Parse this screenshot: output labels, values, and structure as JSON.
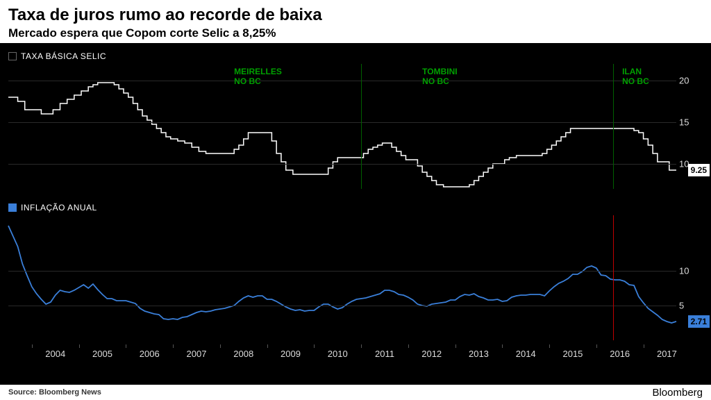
{
  "header": {
    "title": "Taxa de juros rumo ao recorde de baixa",
    "subtitle": "Mercado espera que Copom corte Selic a 8,25%"
  },
  "xaxis": {
    "start_year": 2003.5,
    "end_year": 2017.7,
    "ticks": [
      2004,
      2005,
      2006,
      2007,
      2008,
      2009,
      2010,
      2011,
      2012,
      2013,
      2014,
      2015,
      2016,
      2017
    ]
  },
  "top_chart": {
    "legend_label": "TAXA BÁSICA SELIC",
    "legend_swatch_border": "#666666",
    "legend_swatch_fill": "#000000",
    "line_color": "#ffffff",
    "line_width": 1.5,
    "ylim": [
      7,
      22
    ],
    "yticks": [
      10,
      15,
      20
    ],
    "grid_color": "#2a2a2a",
    "end_value_label": "9.25",
    "end_label_bg": "#ffffff",
    "annotations": [
      {
        "x": 2008.3,
        "text": "MEIRELLES\nNO BC",
        "vline_x": 2011.0
      },
      {
        "x": 2012.3,
        "text": "TOMBINI\nNO BC",
        "vline_x": 2016.35
      },
      {
        "x": 2016.55,
        "text": "ILAN\nNO BC",
        "vline_x": null
      }
    ],
    "red_vline_x": 2016.35,
    "data": [
      [
        2003.5,
        18.0
      ],
      [
        2003.6,
        18.0
      ],
      [
        2003.7,
        17.5
      ],
      [
        2003.8,
        17.5
      ],
      [
        2003.85,
        16.5
      ],
      [
        2003.95,
        16.5
      ],
      [
        2004.05,
        16.5
      ],
      [
        2004.2,
        16.0
      ],
      [
        2004.3,
        16.0
      ],
      [
        2004.4,
        16.0
      ],
      [
        2004.45,
        16.5
      ],
      [
        2004.55,
        16.5
      ],
      [
        2004.6,
        17.25
      ],
      [
        2004.7,
        17.25
      ],
      [
        2004.75,
        17.75
      ],
      [
        2004.85,
        17.75
      ],
      [
        2004.9,
        18.25
      ],
      [
        2005.0,
        18.25
      ],
      [
        2005.05,
        18.75
      ],
      [
        2005.15,
        18.75
      ],
      [
        2005.2,
        19.25
      ],
      [
        2005.3,
        19.5
      ],
      [
        2005.4,
        19.75
      ],
      [
        2005.5,
        19.75
      ],
      [
        2005.6,
        19.75
      ],
      [
        2005.7,
        19.75
      ],
      [
        2005.75,
        19.5
      ],
      [
        2005.85,
        19.0
      ],
      [
        2005.95,
        18.5
      ],
      [
        2006.05,
        18.0
      ],
      [
        2006.15,
        17.25
      ],
      [
        2006.25,
        16.5
      ],
      [
        2006.35,
        15.75
      ],
      [
        2006.45,
        15.25
      ],
      [
        2006.55,
        14.75
      ],
      [
        2006.65,
        14.25
      ],
      [
        2006.75,
        13.75
      ],
      [
        2006.85,
        13.25
      ],
      [
        2006.95,
        13.0
      ],
      [
        2007.1,
        12.75
      ],
      [
        2007.25,
        12.5
      ],
      [
        2007.4,
        12.0
      ],
      [
        2007.55,
        11.5
      ],
      [
        2007.7,
        11.25
      ],
      [
        2007.85,
        11.25
      ],
      [
        2008.0,
        11.25
      ],
      [
        2008.15,
        11.25
      ],
      [
        2008.3,
        11.75
      ],
      [
        2008.4,
        12.25
      ],
      [
        2008.5,
        13.0
      ],
      [
        2008.6,
        13.75
      ],
      [
        2008.7,
        13.75
      ],
      [
        2008.85,
        13.75
      ],
      [
        2009.0,
        13.75
      ],
      [
        2009.1,
        12.75
      ],
      [
        2009.2,
        11.25
      ],
      [
        2009.3,
        10.25
      ],
      [
        2009.4,
        9.25
      ],
      [
        2009.55,
        8.75
      ],
      [
        2009.7,
        8.75
      ],
      [
        2009.85,
        8.75
      ],
      [
        2010.0,
        8.75
      ],
      [
        2010.15,
        8.75
      ],
      [
        2010.3,
        9.5
      ],
      [
        2010.4,
        10.25
      ],
      [
        2010.5,
        10.75
      ],
      [
        2010.65,
        10.75
      ],
      [
        2010.8,
        10.75
      ],
      [
        2010.95,
        10.75
      ],
      [
        2011.05,
        11.25
      ],
      [
        2011.15,
        11.75
      ],
      [
        2011.25,
        12.0
      ],
      [
        2011.35,
        12.25
      ],
      [
        2011.45,
        12.5
      ],
      [
        2011.55,
        12.5
      ],
      [
        2011.65,
        12.0
      ],
      [
        2011.75,
        11.5
      ],
      [
        2011.85,
        11.0
      ],
      [
        2011.95,
        10.5
      ],
      [
        2012.1,
        10.5
      ],
      [
        2012.2,
        9.75
      ],
      [
        2012.3,
        9.0
      ],
      [
        2012.4,
        8.5
      ],
      [
        2012.5,
        8.0
      ],
      [
        2012.6,
        7.5
      ],
      [
        2012.75,
        7.25
      ],
      [
        2012.9,
        7.25
      ],
      [
        2013.05,
        7.25
      ],
      [
        2013.2,
        7.25
      ],
      [
        2013.3,
        7.5
      ],
      [
        2013.4,
        8.0
      ],
      [
        2013.5,
        8.5
      ],
      [
        2013.6,
        9.0
      ],
      [
        2013.7,
        9.5
      ],
      [
        2013.8,
        10.0
      ],
      [
        2013.95,
        10.0
      ],
      [
        2014.05,
        10.5
      ],
      [
        2014.15,
        10.75
      ],
      [
        2014.3,
        11.0
      ],
      [
        2014.5,
        11.0
      ],
      [
        2014.7,
        11.0
      ],
      [
        2014.85,
        11.25
      ],
      [
        2014.95,
        11.75
      ],
      [
        2015.05,
        12.25
      ],
      [
        2015.15,
        12.75
      ],
      [
        2015.25,
        13.25
      ],
      [
        2015.35,
        13.75
      ],
      [
        2015.45,
        14.25
      ],
      [
        2015.6,
        14.25
      ],
      [
        2015.75,
        14.25
      ],
      [
        2015.9,
        14.25
      ],
      [
        2016.1,
        14.25
      ],
      [
        2016.3,
        14.25
      ],
      [
        2016.5,
        14.25
      ],
      [
        2016.7,
        14.25
      ],
      [
        2016.8,
        14.0
      ],
      [
        2016.9,
        13.75
      ],
      [
        2017.0,
        13.0
      ],
      [
        2017.1,
        12.25
      ],
      [
        2017.2,
        11.25
      ],
      [
        2017.3,
        10.25
      ],
      [
        2017.45,
        10.25
      ],
      [
        2017.55,
        9.25
      ],
      [
        2017.7,
        9.25
      ]
    ]
  },
  "bottom_chart": {
    "legend_label": "INFLAÇÃO ANUAL",
    "legend_swatch_fill": "#3a7fd9",
    "line_color": "#3a7fd9",
    "line_width": 1.8,
    "ylim": [
      0,
      18
    ],
    "yticks": [
      5,
      10
    ],
    "grid_color": "#2a2a2a",
    "end_value_label": "2.71",
    "end_label_bg": "#3a7fd9",
    "red_vline_x": 2016.35,
    "data": [
      [
        2003.5,
        16.5
      ],
      [
        2003.6,
        15.0
      ],
      [
        2003.7,
        13.5
      ],
      [
        2003.8,
        11.0
      ],
      [
        2003.9,
        9.3
      ],
      [
        2004.0,
        7.7
      ],
      [
        2004.1,
        6.7
      ],
      [
        2004.2,
        5.9
      ],
      [
        2004.3,
        5.2
      ],
      [
        2004.4,
        5.5
      ],
      [
        2004.5,
        6.5
      ],
      [
        2004.6,
        7.2
      ],
      [
        2004.7,
        7.0
      ],
      [
        2004.8,
        6.9
      ],
      [
        2004.9,
        7.2
      ],
      [
        2005.0,
        7.6
      ],
      [
        2005.1,
        8.0
      ],
      [
        2005.2,
        7.5
      ],
      [
        2005.3,
        8.1
      ],
      [
        2005.4,
        7.3
      ],
      [
        2005.5,
        6.6
      ],
      [
        2005.6,
        6.0
      ],
      [
        2005.7,
        6.0
      ],
      [
        2005.8,
        5.7
      ],
      [
        2005.9,
        5.7
      ],
      [
        2006.0,
        5.7
      ],
      [
        2006.1,
        5.5
      ],
      [
        2006.2,
        5.3
      ],
      [
        2006.3,
        4.6
      ],
      [
        2006.4,
        4.2
      ],
      [
        2006.5,
        4.0
      ],
      [
        2006.6,
        3.8
      ],
      [
        2006.7,
        3.7
      ],
      [
        2006.8,
        3.1
      ],
      [
        2006.9,
        3.0
      ],
      [
        2007.0,
        3.1
      ],
      [
        2007.1,
        3.0
      ],
      [
        2007.2,
        3.3
      ],
      [
        2007.3,
        3.4
      ],
      [
        2007.4,
        3.7
      ],
      [
        2007.5,
        4.0
      ],
      [
        2007.6,
        4.2
      ],
      [
        2007.7,
        4.1
      ],
      [
        2007.8,
        4.2
      ],
      [
        2007.9,
        4.4
      ],
      [
        2008.0,
        4.5
      ],
      [
        2008.1,
        4.6
      ],
      [
        2008.2,
        4.8
      ],
      [
        2008.3,
        5.0
      ],
      [
        2008.4,
        5.6
      ],
      [
        2008.5,
        6.1
      ],
      [
        2008.6,
        6.4
      ],
      [
        2008.7,
        6.2
      ],
      [
        2008.8,
        6.4
      ],
      [
        2008.9,
        6.4
      ],
      [
        2009.0,
        5.9
      ],
      [
        2009.1,
        5.9
      ],
      [
        2009.2,
        5.6
      ],
      [
        2009.3,
        5.2
      ],
      [
        2009.4,
        4.8
      ],
      [
        2009.5,
        4.5
      ],
      [
        2009.6,
        4.3
      ],
      [
        2009.7,
        4.4
      ],
      [
        2009.8,
        4.2
      ],
      [
        2009.9,
        4.3
      ],
      [
        2010.0,
        4.3
      ],
      [
        2010.1,
        4.8
      ],
      [
        2010.2,
        5.2
      ],
      [
        2010.3,
        5.2
      ],
      [
        2010.4,
        4.8
      ],
      [
        2010.5,
        4.5
      ],
      [
        2010.6,
        4.7
      ],
      [
        2010.7,
        5.2
      ],
      [
        2010.8,
        5.6
      ],
      [
        2010.9,
        5.9
      ],
      [
        2011.0,
        6.0
      ],
      [
        2011.1,
        6.1
      ],
      [
        2011.2,
        6.3
      ],
      [
        2011.3,
        6.5
      ],
      [
        2011.4,
        6.7
      ],
      [
        2011.5,
        7.2
      ],
      [
        2011.6,
        7.2
      ],
      [
        2011.7,
        7.0
      ],
      [
        2011.8,
        6.6
      ],
      [
        2011.9,
        6.5
      ],
      [
        2012.0,
        6.2
      ],
      [
        2012.1,
        5.8
      ],
      [
        2012.2,
        5.2
      ],
      [
        2012.3,
        5.0
      ],
      [
        2012.4,
        4.9
      ],
      [
        2012.5,
        5.2
      ],
      [
        2012.6,
        5.3
      ],
      [
        2012.7,
        5.4
      ],
      [
        2012.8,
        5.5
      ],
      [
        2012.9,
        5.8
      ],
      [
        2013.0,
        5.8
      ],
      [
        2013.1,
        6.3
      ],
      [
        2013.2,
        6.6
      ],
      [
        2013.3,
        6.5
      ],
      [
        2013.4,
        6.7
      ],
      [
        2013.5,
        6.3
      ],
      [
        2013.6,
        6.1
      ],
      [
        2013.7,
        5.8
      ],
      [
        2013.8,
        5.8
      ],
      [
        2013.9,
        5.9
      ],
      [
        2014.0,
        5.6
      ],
      [
        2014.1,
        5.7
      ],
      [
        2014.2,
        6.2
      ],
      [
        2014.3,
        6.4
      ],
      [
        2014.4,
        6.5
      ],
      [
        2014.5,
        6.5
      ],
      [
        2014.6,
        6.6
      ],
      [
        2014.7,
        6.6
      ],
      [
        2014.8,
        6.6
      ],
      [
        2014.9,
        6.4
      ],
      [
        2015.0,
        7.1
      ],
      [
        2015.1,
        7.7
      ],
      [
        2015.2,
        8.2
      ],
      [
        2015.3,
        8.5
      ],
      [
        2015.4,
        8.9
      ],
      [
        2015.5,
        9.5
      ],
      [
        2015.6,
        9.5
      ],
      [
        2015.7,
        9.9
      ],
      [
        2015.8,
        10.5
      ],
      [
        2015.9,
        10.7
      ],
      [
        2016.0,
        10.4
      ],
      [
        2016.1,
        9.4
      ],
      [
        2016.2,
        9.3
      ],
      [
        2016.3,
        8.8
      ],
      [
        2016.4,
        8.7
      ],
      [
        2016.5,
        8.7
      ],
      [
        2016.6,
        8.5
      ],
      [
        2016.7,
        8.0
      ],
      [
        2016.8,
        7.9
      ],
      [
        2016.9,
        6.3
      ],
      [
        2017.0,
        5.4
      ],
      [
        2017.1,
        4.6
      ],
      [
        2017.2,
        4.1
      ],
      [
        2017.3,
        3.6
      ],
      [
        2017.4,
        3.0
      ],
      [
        2017.5,
        2.7
      ],
      [
        2017.6,
        2.5
      ],
      [
        2017.7,
        2.71
      ]
    ]
  },
  "footer": {
    "source": "Source: Bloomberg News",
    "brand": "Bloomberg"
  }
}
